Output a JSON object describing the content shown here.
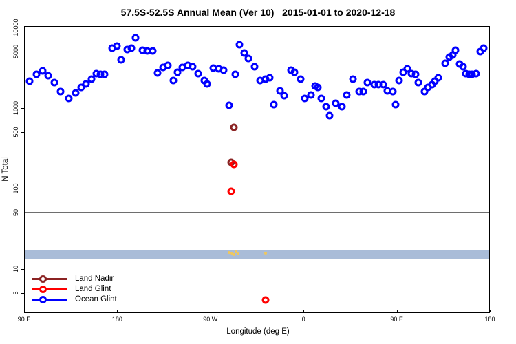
{
  "title": "57.5S-52.5S Annual Mean (Ver 10)   2015-01-01 to 2020-12-18",
  "chart_data": {
    "type": "scatter",
    "title": "57.5S-52.5S Annual Mean (Ver 10)   2015-01-01 to 2020-12-18",
    "xlabel": "Longitude (deg E)",
    "ylabel": "N Total",
    "x_axis": {
      "lim": [
        90,
        540
      ],
      "note": "longitude axis wraps: 90E -> 180 -> 90W -> 0 -> 90E -> 180",
      "ticks": [
        {
          "deg": 90,
          "label": "90 E"
        },
        {
          "deg": 180,
          "label": "180"
        },
        {
          "deg": 270,
          "label": "90 W"
        },
        {
          "deg": 360,
          "label": "0"
        },
        {
          "deg": 450,
          "label": "90 E"
        },
        {
          "deg": 540,
          "label": "180"
        }
      ]
    },
    "y_axis": {
      "scale": "log",
      "lim": [
        2.84,
        10400
      ],
      "ticks": [
        {
          "v": 5,
          "label": "5"
        },
        {
          "v": 10,
          "label": "10"
        },
        {
          "v": 50,
          "label": "50"
        },
        {
          "v": 100,
          "label": "100"
        },
        {
          "v": 500,
          "label": "500"
        },
        {
          "v": 1000,
          "label": "1000"
        },
        {
          "v": 5000,
          "label": "5000"
        },
        {
          "v": 10000,
          "label": "10000"
        }
      ]
    },
    "grid": false,
    "reference_line": {
      "value": 50,
      "color": "#6e6e6e"
    },
    "band": {
      "from": 13.2,
      "to": 17.3,
      "color": "#a9bcd8"
    },
    "legend": {
      "position": "bottom-left",
      "entries": [
        {
          "label": "Land Nadir",
          "color": "#8b2323"
        },
        {
          "label": "Land Glint",
          "color": "#ff0000"
        },
        {
          "label": "Ocean Glint",
          "color": "#0000ff"
        }
      ]
    },
    "series": [
      {
        "name": "Land Nadir",
        "color": "#8b2323",
        "marker": "open-circle",
        "points": [
          [
            293,
            580
          ],
          [
            290,
            210
          ]
        ]
      },
      {
        "name": "Land Glint",
        "color": "#ff0000",
        "marker": "open-circle",
        "points": [
          [
            293,
            200
          ],
          [
            290,
            92
          ],
          [
            323,
            4.1
          ]
        ]
      },
      {
        "name": "Ocean Glint",
        "color": "#0000ff",
        "marker": "open-circle",
        "points": [
          [
            95,
            2150
          ],
          [
            102,
            2620
          ],
          [
            108,
            2890
          ],
          [
            113,
            2520
          ],
          [
            119,
            2070
          ],
          [
            125,
            1600
          ],
          [
            133,
            1320
          ],
          [
            140,
            1540
          ],
          [
            145,
            1800
          ],
          [
            150,
            1990
          ],
          [
            155,
            2290
          ],
          [
            160,
            2680
          ],
          [
            164,
            2620
          ],
          [
            168,
            2620
          ],
          [
            175,
            5540
          ],
          [
            180,
            5880
          ],
          [
            184,
            3960
          ],
          [
            190,
            5300
          ],
          [
            194,
            5540
          ],
          [
            198,
            7450
          ],
          [
            204,
            5200
          ],
          [
            209,
            5100
          ],
          [
            214,
            5100
          ],
          [
            219,
            2730
          ],
          [
            224,
            3200
          ],
          [
            229,
            3390
          ],
          [
            234,
            2200
          ],
          [
            238,
            2780
          ],
          [
            243,
            3200
          ],
          [
            248,
            3390
          ],
          [
            253,
            3260
          ],
          [
            258,
            2680
          ],
          [
            264,
            2200
          ],
          [
            267,
            1990
          ],
          [
            273,
            3140
          ],
          [
            278,
            3080
          ],
          [
            283,
            2960
          ],
          [
            294,
            2620
          ],
          [
            288,
            1080
          ],
          [
            298,
            6110
          ],
          [
            303,
            4830
          ],
          [
            307,
            4120
          ],
          [
            313,
            3260
          ],
          [
            318,
            2200
          ],
          [
            323,
            2290
          ],
          [
            327,
            2380
          ],
          [
            331,
            1100
          ],
          [
            337,
            1640
          ],
          [
            341,
            1430
          ],
          [
            348,
            2960
          ],
          [
            351,
            2780
          ],
          [
            357,
            2290
          ],
          [
            361,
            1320
          ],
          [
            367,
            1460
          ],
          [
            371,
            1870
          ],
          [
            374,
            1800
          ],
          [
            377,
            1320
          ],
          [
            382,
            1040
          ],
          [
            385,
            810
          ],
          [
            391,
            1150
          ],
          [
            397,
            1040
          ],
          [
            402,
            1460
          ],
          [
            408,
            2290
          ],
          [
            414,
            1610
          ],
          [
            418,
            1610
          ],
          [
            422,
            2070
          ],
          [
            428,
            1950
          ],
          [
            432,
            1950
          ],
          [
            437,
            1950
          ],
          [
            441,
            1640
          ],
          [
            446,
            1610
          ],
          [
            449,
            1100
          ],
          [
            452,
            2200
          ],
          [
            456,
            2780
          ],
          [
            460,
            3080
          ],
          [
            464,
            2680
          ],
          [
            468,
            2620
          ],
          [
            471,
            2070
          ],
          [
            477,
            1610
          ],
          [
            480,
            1800
          ],
          [
            484,
            1950
          ],
          [
            487,
            2160
          ],
          [
            490,
            2380
          ],
          [
            497,
            3590
          ],
          [
            501,
            4290
          ],
          [
            504,
            4550
          ],
          [
            507,
            5200
          ],
          [
            511,
            3520
          ],
          [
            514,
            3260
          ],
          [
            517,
            2680
          ],
          [
            520,
            2620
          ],
          [
            523,
            2620
          ],
          [
            527,
            2680
          ],
          [
            531,
            5000
          ],
          [
            534,
            5540
          ]
        ]
      },
      {
        "name": "band-small-marks",
        "color": "#efc75e",
        "marker": "small-dot",
        "points": [
          [
            288,
            16.2
          ],
          [
            291,
            15.8
          ],
          [
            293,
            15.0
          ],
          [
            295,
            16.4
          ],
          [
            297,
            15.3
          ],
          [
            323,
            15.8
          ]
        ]
      }
    ]
  }
}
